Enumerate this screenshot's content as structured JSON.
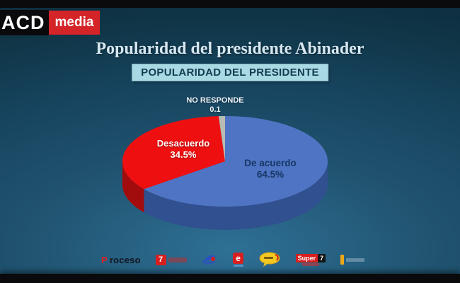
{
  "colors": {
    "brand_red": "#d42428",
    "title_text": "#d5e7f0",
    "subtitle_bg": "#a9dae3",
    "subtitle_text": "#143c50",
    "background_teal": "#174560"
  },
  "brand": {
    "acd": "ACD",
    "media": "media"
  },
  "header": {
    "title": "Popularidad del presidente Abinader",
    "subtitle": "POPULARIDAD DEL PRESIDENTE"
  },
  "chart_data": {
    "type": "pie",
    "style": "3d",
    "title": "POPULARIDAD DEL PRESIDENTE",
    "start_angle_deg": -90,
    "direction": "clockwise",
    "legend_position": "none",
    "slices": [
      {
        "label": "De acuerdo",
        "value": 64.5,
        "display": "64.5%",
        "color": "#4f74c4",
        "side_color": "#31508f",
        "label_color": "#173764"
      },
      {
        "label": "Desacuerdo",
        "value": 34.5,
        "display": "34.5%",
        "color": "#ee1010",
        "side_color": "#a30c0c",
        "label_color": "#ffffff"
      },
      {
        "label": "NO RESPONDE",
        "value": 0.1,
        "display": "0.1",
        "color": "#b9bcb4",
        "side_color": "#8f928b",
        "label_color": "#ffffff"
      }
    ]
  },
  "footer": {
    "logos": [
      {
        "name": "proceso",
        "initial": "P",
        "rest": "roceso"
      },
      {
        "name": "7dias",
        "text": "7"
      },
      {
        "name": "swoosh",
        "text": ""
      },
      {
        "name": "e-logo",
        "text": "e"
      },
      {
        "name": "bubble",
        "text": ""
      },
      {
        "name": "super7",
        "text_main": "Super",
        "text_box": "7"
      },
      {
        "name": "orange-mark",
        "text": ""
      }
    ]
  }
}
